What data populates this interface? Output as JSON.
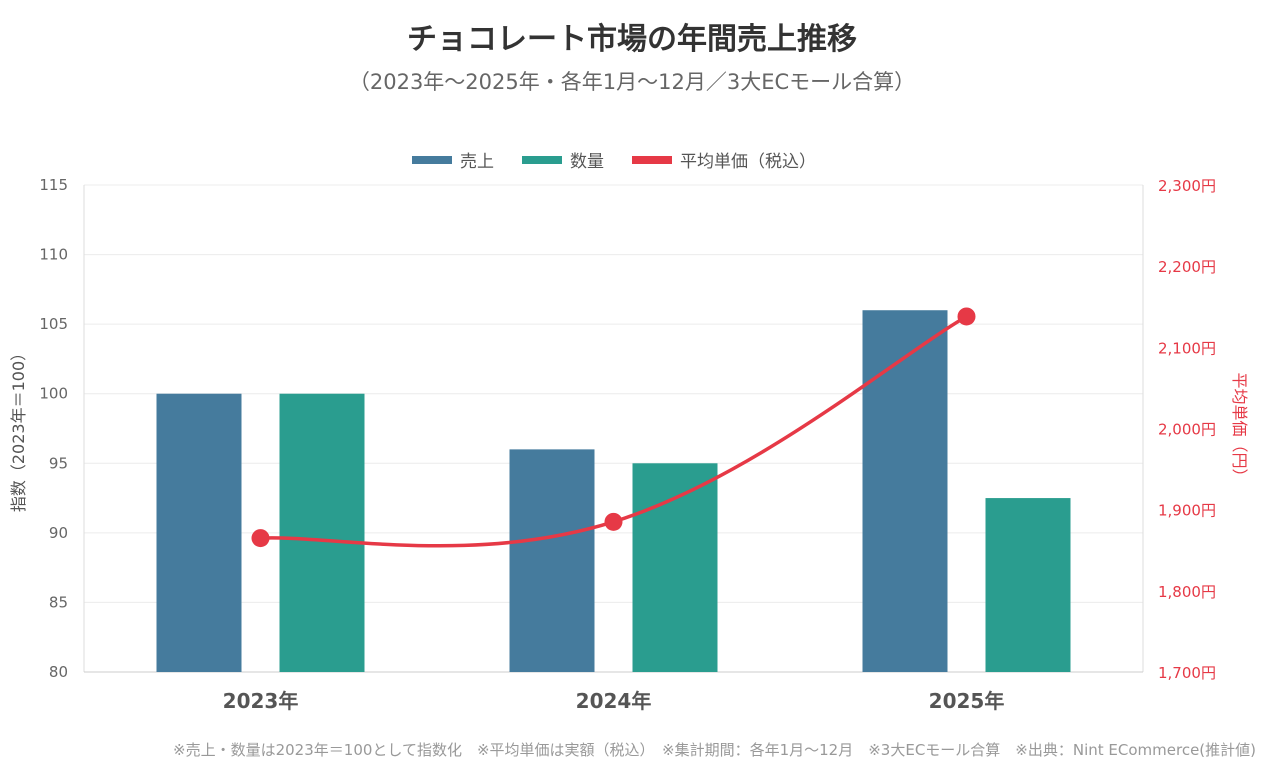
{
  "title": "チョコレート市場の年間売上推移",
  "subtitle": "（2023年〜2025年・各年1月〜12月／3大ECモール合算）",
  "footnote": "※売上・数量は2023年＝100として指数化　※平均単価は実額（税込）　※集計期間：各年1月〜12月　※3大ECモール合算　※出典：Nint ECommerce(推計値)",
  "colors": {
    "sales": "#457b9d",
    "quantity": "#2a9d8f",
    "price": "#e63946"
  },
  "chart_data": {
    "type": "bar+line",
    "categories": [
      "2023年",
      "2024年",
      "2025年"
    ],
    "series": [
      {
        "name": "売上",
        "type": "bar",
        "axis": "left",
        "values": [
          100,
          96,
          106
        ]
      },
      {
        "name": "数量",
        "type": "bar",
        "axis": "left",
        "values": [
          100,
          95,
          92.5
        ]
      },
      {
        "name": "平均単価（税込）",
        "type": "line",
        "axis": "right",
        "values": [
          1865,
          1885,
          2138
        ]
      }
    ],
    "y_left": {
      "label": "指数（2023年＝100）",
      "range": [
        80,
        115
      ],
      "ticks": [
        "80",
        "85",
        "90",
        "95",
        "100",
        "105",
        "110",
        "115"
      ]
    },
    "y_right": {
      "label": "平均単価（円）",
      "range": [
        1700,
        2300
      ],
      "ticks": [
        "1,700円",
        "1,800円",
        "1,900円",
        "2,000円",
        "2,100円",
        "2,200円",
        "2,300円"
      ]
    },
    "grid": true,
    "legend": "top-center"
  }
}
